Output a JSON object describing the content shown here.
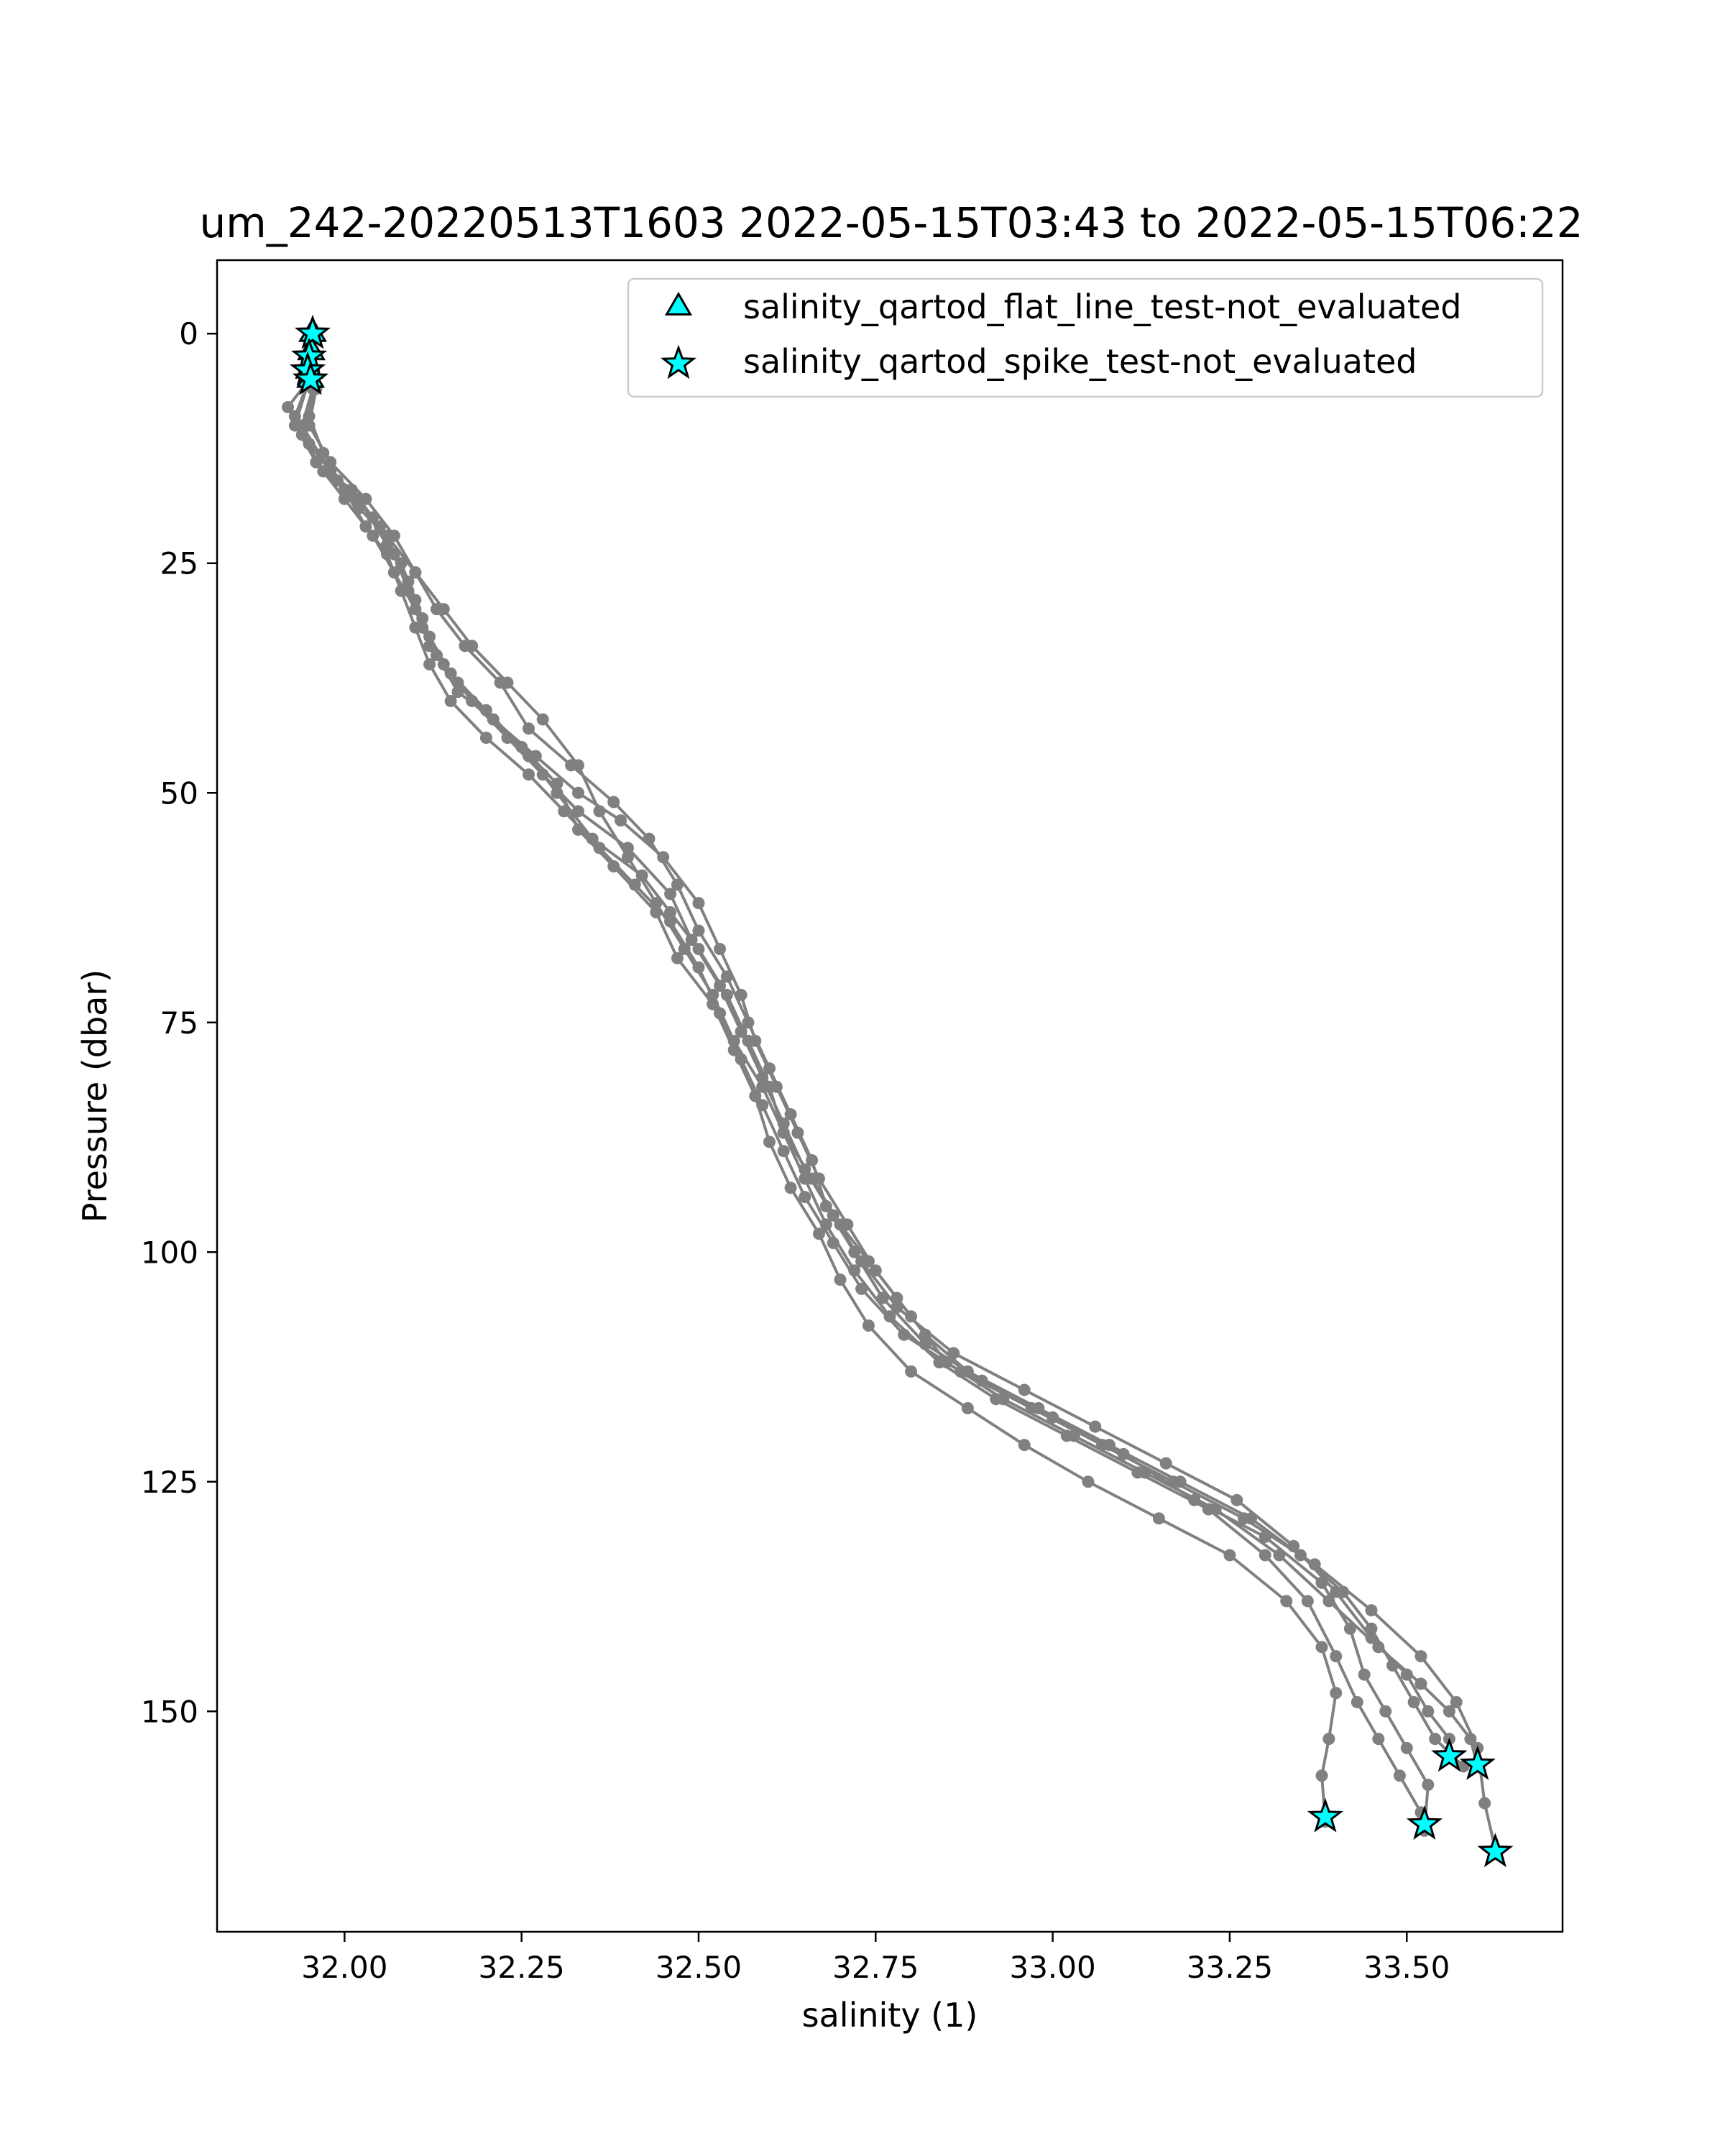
{
  "chart_data": {
    "type": "line",
    "title": "um_242-20220513T1603 2022-05-15T03:43 to 2022-05-15T06:22",
    "xlabel": "salinity (1)",
    "ylabel": "Pressure (dbar)",
    "xlim": [
      31.82,
      33.72
    ],
    "ylim": [
      174,
      -8
    ],
    "y_inverted": true,
    "grid": false,
    "legend_position": "top-right",
    "x_ticks": [
      {
        "value": 32.0,
        "label": "32.00"
      },
      {
        "value": 32.25,
        "label": "32.25"
      },
      {
        "value": 32.5,
        "label": "32.50"
      },
      {
        "value": 32.75,
        "label": "32.75"
      },
      {
        "value": 33.0,
        "label": "33.00"
      },
      {
        "value": 33.25,
        "label": "33.25"
      },
      {
        "value": 33.5,
        "label": "33.50"
      }
    ],
    "y_ticks": [
      {
        "value": 0,
        "label": "0"
      },
      {
        "value": 25,
        "label": "25"
      },
      {
        "value": 50,
        "label": "50"
      },
      {
        "value": 75,
        "label": "75"
      },
      {
        "value": 100,
        "label": "100"
      },
      {
        "value": 125,
        "label": "125"
      },
      {
        "value": 150,
        "label": "150"
      }
    ],
    "colors": {
      "profile": "#808080",
      "marker_fill": "#00ffff",
      "marker_edge": "#000000"
    },
    "legend": [
      {
        "label": "salinity_qartod_flat_line_test-not_evaluated",
        "marker": "triangle"
      },
      {
        "label": "salinity_qartod_spike_test-not_evaluated",
        "marker": "star"
      }
    ],
    "series": [
      {
        "points": [
          [
            31.95,
            5
          ],
          [
            31.93,
            9
          ],
          [
            31.96,
            14
          ],
          [
            32.01,
            17
          ],
          [
            32.05,
            21
          ],
          [
            32.08,
            25
          ],
          [
            32.1,
            29
          ],
          [
            32.12,
            33
          ],
          [
            32.15,
            37
          ],
          [
            32.2,
            41
          ],
          [
            32.25,
            45
          ],
          [
            32.3,
            49
          ],
          [
            32.33,
            54
          ],
          [
            32.38,
            58
          ],
          [
            32.44,
            63
          ],
          [
            32.47,
            68
          ],
          [
            32.52,
            73
          ],
          [
            32.55,
            78
          ],
          [
            32.58,
            83
          ],
          [
            32.6,
            88
          ],
          [
            32.63,
            93
          ],
          [
            32.67,
            98
          ],
          [
            32.7,
            103
          ],
          [
            32.74,
            108
          ],
          [
            32.8,
            113
          ],
          [
            32.88,
            117
          ],
          [
            32.96,
            121
          ],
          [
            33.05,
            125
          ],
          [
            33.15,
            129
          ],
          [
            33.25,
            133
          ],
          [
            33.33,
            138
          ],
          [
            33.38,
            143
          ],
          [
            33.4,
            148
          ],
          [
            33.39,
            153
          ],
          [
            33.38,
            157
          ],
          [
            33.385,
            162
          ]
        ]
      },
      {
        "points": [
          [
            31.955,
            6
          ],
          [
            31.94,
            10
          ],
          [
            31.98,
            15
          ],
          [
            32.02,
            19
          ],
          [
            32.06,
            22
          ],
          [
            32.1,
            26
          ],
          [
            32.13,
            30
          ],
          [
            32.17,
            34
          ],
          [
            32.22,
            38
          ],
          [
            32.26,
            43
          ],
          [
            32.32,
            47
          ],
          [
            32.38,
            51
          ],
          [
            32.43,
            55
          ],
          [
            32.47,
            60
          ],
          [
            32.5,
            65
          ],
          [
            32.54,
            70
          ],
          [
            32.57,
            75
          ],
          [
            32.6,
            80
          ],
          [
            32.63,
            85
          ],
          [
            32.66,
            90
          ],
          [
            32.68,
            95
          ],
          [
            32.72,
            100
          ],
          [
            32.76,
            105
          ],
          [
            32.82,
            110
          ],
          [
            32.9,
            114
          ],
          [
            33.0,
            118
          ],
          [
            33.1,
            122
          ],
          [
            33.2,
            127
          ],
          [
            33.3,
            131
          ],
          [
            33.38,
            136
          ],
          [
            33.42,
            141
          ],
          [
            33.44,
            146
          ],
          [
            33.47,
            150
          ],
          [
            33.5,
            154
          ],
          [
            33.53,
            158
          ],
          [
            33.525,
            163
          ]
        ]
      },
      {
        "points": [
          [
            31.95,
            5
          ],
          [
            31.92,
            8
          ],
          [
            31.95,
            12
          ],
          [
            31.99,
            16
          ],
          [
            32.04,
            20
          ],
          [
            32.07,
            24
          ],
          [
            32.09,
            28
          ],
          [
            32.11,
            32
          ],
          [
            32.14,
            36
          ],
          [
            32.18,
            40
          ],
          [
            32.23,
            44
          ],
          [
            32.28,
            48
          ],
          [
            32.33,
            52
          ],
          [
            32.4,
            56
          ],
          [
            32.46,
            61
          ],
          [
            32.49,
            66
          ],
          [
            32.53,
            71
          ],
          [
            32.56,
            76
          ],
          [
            32.59,
            81
          ],
          [
            32.62,
            86
          ],
          [
            32.65,
            91
          ],
          [
            32.69,
            96
          ],
          [
            32.73,
            101
          ],
          [
            32.78,
            106
          ],
          [
            32.86,
            111
          ],
          [
            32.96,
            115
          ],
          [
            33.06,
            119
          ],
          [
            33.16,
            123
          ],
          [
            33.26,
            127
          ],
          [
            33.34,
            132
          ],
          [
            33.4,
            137
          ],
          [
            33.45,
            142
          ],
          [
            33.5,
            146
          ],
          [
            33.53,
            150
          ],
          [
            33.56,
            153
          ],
          [
            33.56,
            155
          ]
        ]
      },
      {
        "points": [
          [
            31.96,
            6
          ],
          [
            31.94,
            11
          ],
          [
            31.97,
            15
          ],
          [
            32.02,
            18
          ],
          [
            32.06,
            23
          ],
          [
            32.09,
            27
          ],
          [
            32.11,
            31
          ],
          [
            32.13,
            35
          ],
          [
            32.16,
            39
          ],
          [
            32.21,
            42
          ],
          [
            32.27,
            46
          ],
          [
            32.33,
            50
          ],
          [
            32.39,
            53
          ],
          [
            32.45,
            57
          ],
          [
            32.5,
            62
          ],
          [
            32.53,
            67
          ],
          [
            32.56,
            72
          ],
          [
            32.58,
            77
          ],
          [
            32.61,
            82
          ],
          [
            32.64,
            87
          ],
          [
            32.67,
            92
          ],
          [
            32.71,
            97
          ],
          [
            32.75,
            102
          ],
          [
            32.8,
            107
          ],
          [
            32.85,
            112
          ],
          [
            32.93,
            116
          ],
          [
            33.03,
            120
          ],
          [
            33.13,
            124
          ],
          [
            33.23,
            128
          ],
          [
            33.32,
            133
          ],
          [
            33.39,
            138
          ],
          [
            33.46,
            143
          ],
          [
            33.52,
            147
          ],
          [
            33.56,
            150
          ],
          [
            33.59,
            153
          ],
          [
            33.6,
            156
          ]
        ]
      },
      {
        "points": [
          [
            31.955,
            6
          ],
          [
            31.95,
            9
          ],
          [
            31.97,
            13
          ],
          [
            32.0,
            17
          ],
          [
            32.03,
            21
          ],
          [
            32.06,
            24
          ],
          [
            32.08,
            28
          ],
          [
            32.1,
            32
          ],
          [
            32.12,
            36
          ],
          [
            32.15,
            40
          ],
          [
            32.2,
            44
          ],
          [
            32.26,
            48
          ],
          [
            32.31,
            52
          ],
          [
            32.36,
            56
          ],
          [
            32.41,
            60
          ],
          [
            32.46,
            64
          ],
          [
            32.5,
            69
          ],
          [
            32.53,
            74
          ],
          [
            32.56,
            79
          ],
          [
            32.59,
            84
          ],
          [
            32.62,
            89
          ],
          [
            32.65,
            94
          ],
          [
            32.69,
            99
          ],
          [
            32.73,
            104
          ],
          [
            32.79,
            109
          ],
          [
            32.87,
            113
          ],
          [
            32.97,
            117
          ],
          [
            33.07,
            121
          ],
          [
            33.17,
            125
          ],
          [
            33.27,
            129
          ],
          [
            33.37,
            134
          ],
          [
            33.45,
            139
          ],
          [
            33.52,
            144
          ],
          [
            33.57,
            149
          ],
          [
            33.6,
            154
          ],
          [
            33.61,
            160
          ],
          [
            33.625,
            165
          ]
        ]
      },
      {
        "points": [
          [
            31.95,
            5
          ],
          [
            31.93,
            10
          ],
          [
            31.96,
            14
          ],
          [
            32.0,
            18
          ],
          [
            32.04,
            22
          ],
          [
            32.07,
            26
          ],
          [
            32.1,
            30
          ],
          [
            32.12,
            34
          ],
          [
            32.16,
            38
          ],
          [
            32.21,
            42
          ],
          [
            32.26,
            46
          ],
          [
            32.3,
            50
          ],
          [
            32.35,
            55
          ],
          [
            32.42,
            59
          ],
          [
            32.46,
            63
          ],
          [
            32.5,
            67
          ],
          [
            32.54,
            72
          ],
          [
            32.57,
            77
          ],
          [
            32.6,
            82
          ],
          [
            32.62,
            87
          ],
          [
            32.65,
            92
          ],
          [
            32.68,
            97
          ],
          [
            32.72,
            102
          ],
          [
            32.77,
            107
          ],
          [
            32.84,
            112
          ],
          [
            32.92,
            116
          ],
          [
            33.02,
            120
          ],
          [
            33.12,
            124
          ],
          [
            33.22,
            128
          ],
          [
            33.3,
            133
          ],
          [
            33.36,
            138
          ],
          [
            33.4,
            144
          ],
          [
            33.43,
            149
          ],
          [
            33.46,
            153
          ],
          [
            33.49,
            157
          ],
          [
            33.52,
            161
          ]
        ]
      },
      {
        "points": [
          [
            31.96,
            6
          ],
          [
            31.95,
            10
          ],
          [
            31.98,
            14
          ],
          [
            32.03,
            18
          ],
          [
            32.07,
            22
          ],
          [
            32.1,
            26
          ],
          [
            32.14,
            30
          ],
          [
            32.18,
            34
          ],
          [
            32.23,
            38
          ],
          [
            32.28,
            42
          ],
          [
            32.33,
            47
          ],
          [
            32.36,
            52
          ],
          [
            32.4,
            57
          ],
          [
            32.44,
            62
          ],
          [
            32.48,
            67
          ],
          [
            32.52,
            72
          ],
          [
            32.55,
            77
          ],
          [
            32.59,
            82
          ],
          [
            32.62,
            87
          ],
          [
            32.66,
            92
          ],
          [
            32.7,
            97
          ],
          [
            32.74,
            101
          ],
          [
            32.78,
            105
          ],
          [
            32.82,
            109
          ],
          [
            32.88,
            113
          ],
          [
            32.98,
            117
          ],
          [
            33.08,
            121
          ],
          [
            33.18,
            125
          ],
          [
            33.28,
            129
          ],
          [
            33.35,
            133
          ],
          [
            33.41,
            137
          ],
          [
            33.45,
            141
          ],
          [
            33.48,
            145
          ],
          [
            33.51,
            149
          ],
          [
            33.54,
            153
          ],
          [
            33.58,
            156
          ]
        ]
      }
    ],
    "flat_line_markers": [
      [
        31.955,
        0
      ],
      [
        31.953,
        2
      ],
      [
        31.95,
        4
      ],
      [
        31.952,
        5
      ]
    ],
    "spike_markers": [
      [
        31.955,
        0
      ],
      [
        31.95,
        2.5
      ],
      [
        31.948,
        4
      ],
      [
        31.952,
        5
      ],
      [
        33.385,
        161.5
      ],
      [
        33.525,
        162.3
      ],
      [
        33.56,
        154.9
      ],
      [
        33.6,
        155.8
      ],
      [
        33.625,
        165.3
      ]
    ]
  }
}
